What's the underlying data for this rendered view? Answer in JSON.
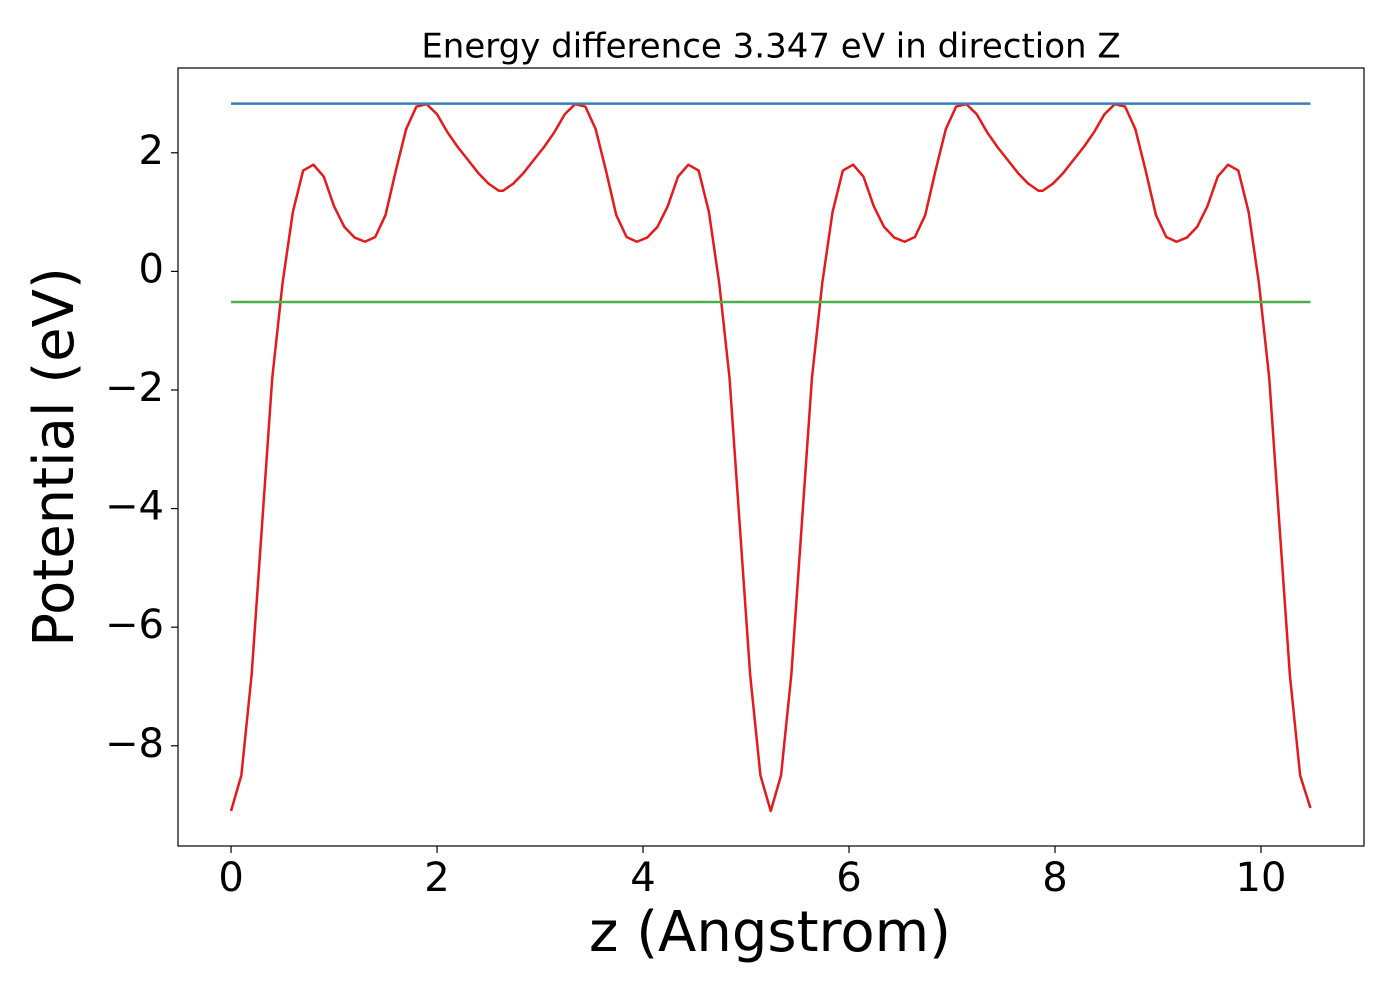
{
  "chart_data": {
    "type": "line",
    "title": "Energy difference 3.347 eV in direction Z",
    "xlabel": "z (Angstrom)",
    "ylabel": "Potential (eV)",
    "xlim": [
      -0.515,
      11.0
    ],
    "ylim": [
      -9.69,
      3.43
    ],
    "xticks": [
      0,
      2,
      4,
      6,
      8,
      10
    ],
    "yticks": [
      {
        "value": -8,
        "label": "−8"
      },
      {
        "value": -6,
        "label": "−6"
      },
      {
        "value": -4,
        "label": "−4"
      },
      {
        "value": -2,
        "label": "−2"
      },
      0,
      2
    ],
    "grid": false,
    "series": [
      {
        "color": "#e41a1c",
        "x": [
          0,
          0.1,
          0.2,
          0.3,
          0.4,
          0.5,
          0.6,
          0.7,
          0.8,
          0.9,
          1.0,
          1.1,
          1.2,
          1.3,
          1.4,
          1.5,
          1.6,
          1.7,
          1.8,
          1.9,
          2.0,
          2.1,
          2.2,
          2.3,
          2.4,
          2.5,
          2.6,
          2.64,
          2.74,
          2.84,
          2.94,
          3.04,
          3.14,
          3.24,
          3.34,
          3.44,
          3.54,
          3.64,
          3.74,
          3.84,
          3.94,
          4.04,
          4.14,
          4.24,
          4.34,
          4.44,
          4.54,
          4.64,
          4.74,
          4.84,
          4.94,
          5.04,
          5.14,
          5.24,
          5.34,
          5.44,
          5.54,
          5.64,
          5.74,
          5.84,
          5.94,
          6.04,
          6.14,
          6.24,
          6.34,
          6.44,
          6.54,
          6.64,
          6.74,
          6.84,
          6.94,
          7.04,
          7.14,
          7.24,
          7.34,
          7.44,
          7.54,
          7.64,
          7.74,
          7.84,
          7.88,
          7.98,
          8.08,
          8.18,
          8.28,
          8.38,
          8.48,
          8.58,
          8.68,
          8.78,
          8.88,
          8.98,
          9.08,
          9.18,
          9.28,
          9.38,
          9.48,
          9.58,
          9.68,
          9.78,
          9.88,
          9.98,
          10.08,
          10.18,
          10.28,
          10.38,
          10.48
        ],
        "values": [
          -9.1,
          -8.5,
          -6.8,
          -4.3,
          -1.8,
          -0.2,
          1.0,
          1.7,
          1.8,
          1.6,
          1.1,
          0.75,
          0.57,
          0.5,
          0.58,
          0.95,
          1.7,
          2.4,
          2.78,
          2.82,
          2.65,
          2.35,
          2.1,
          1.88,
          1.66,
          1.48,
          1.36,
          1.36,
          1.48,
          1.66,
          1.88,
          2.1,
          2.35,
          2.65,
          2.82,
          2.78,
          2.4,
          1.7,
          0.95,
          0.58,
          0.5,
          0.57,
          0.75,
          1.1,
          1.6,
          1.8,
          1.7,
          1.0,
          -0.2,
          -1.8,
          -4.3,
          -6.8,
          -8.5,
          -9.1,
          -8.5,
          -6.8,
          -4.3,
          -1.8,
          -0.2,
          1.0,
          1.7,
          1.8,
          1.6,
          1.1,
          0.75,
          0.57,
          0.5,
          0.58,
          0.95,
          1.7,
          2.4,
          2.78,
          2.82,
          2.65,
          2.35,
          2.1,
          1.88,
          1.66,
          1.48,
          1.36,
          1.36,
          1.48,
          1.66,
          1.88,
          2.1,
          2.35,
          2.65,
          2.82,
          2.78,
          2.4,
          1.7,
          0.95,
          0.58,
          0.5,
          0.57,
          0.75,
          1.1,
          1.6,
          1.8,
          1.7,
          1.0,
          -0.2,
          -1.8,
          -4.3,
          -6.8,
          -8.5,
          -9.05
        ]
      },
      {
        "color": "#377eb8",
        "x": [
          0,
          10.48
        ],
        "values": [
          2.83,
          2.83
        ]
      },
      {
        "color": "#4daf4a",
        "x": [
          0,
          10.48
        ],
        "values": [
          -0.517,
          -0.517
        ]
      }
    ]
  }
}
